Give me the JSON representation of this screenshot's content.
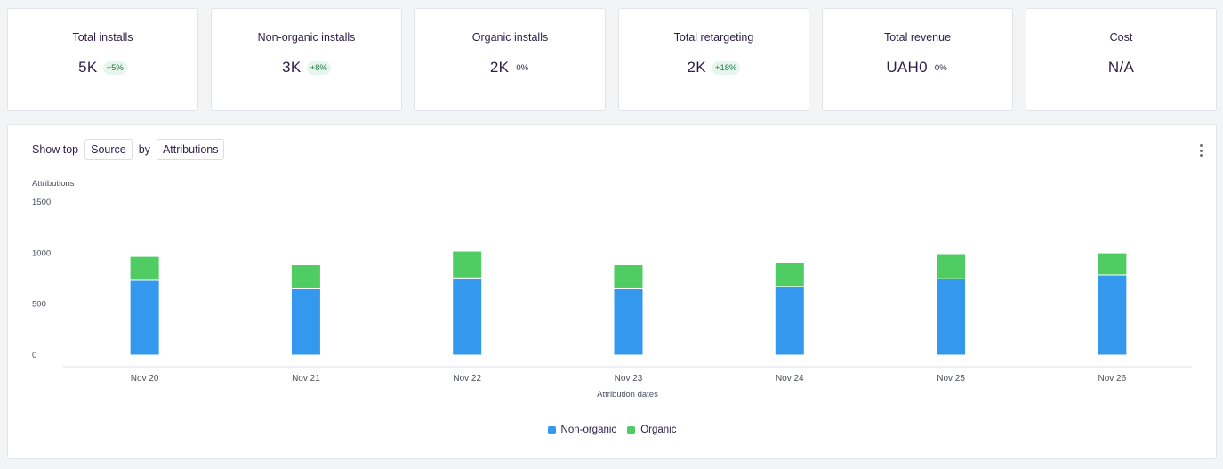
{
  "kpis": [
    {
      "title": "Total installs",
      "value": "5K",
      "badge": "+5%",
      "badge_type": "positive"
    },
    {
      "title": "Non-organic installs",
      "value": "3K",
      "badge": "+8%",
      "badge_type": "positive"
    },
    {
      "title": "Organic installs",
      "value": "2K",
      "badge": "0%",
      "badge_type": "neutral"
    },
    {
      "title": "Total retargeting",
      "value": "2K",
      "badge": "+18%",
      "badge_type": "positive"
    },
    {
      "title": "Total revenue",
      "value": "UAH0",
      "badge": "0%",
      "badge_type": "neutral"
    },
    {
      "title": "Cost",
      "value": "N/A",
      "badge": "",
      "badge_type": "none"
    }
  ],
  "controls": {
    "show_top_label": "Show top",
    "dimension": "Source",
    "by_label": "by",
    "metric": "Attributions"
  },
  "menu_icon": "kebab-menu-icon",
  "chart_data": {
    "type": "bar",
    "stacked": true,
    "ylabel": "Attributions",
    "xlabel": "Attribution dates",
    "ylim": [
      0,
      1500
    ],
    "yticks": [
      0,
      500,
      1000,
      1500
    ],
    "categories": [
      "Nov 20",
      "Nov 21",
      "Nov 22",
      "Nov 23",
      "Nov 24",
      "Nov 25",
      "Nov 26"
    ],
    "series": [
      {
        "name": "Non-organic",
        "color": "#3598ef",
        "values": [
          733,
          650,
          756,
          650,
          673,
          748,
          785
        ]
      },
      {
        "name": "Organic",
        "color": "#4fcd63",
        "values": [
          234,
          235,
          264,
          235,
          234,
          246,
          217
        ]
      }
    ],
    "legend_position": "bottom-center",
    "grid": false
  }
}
